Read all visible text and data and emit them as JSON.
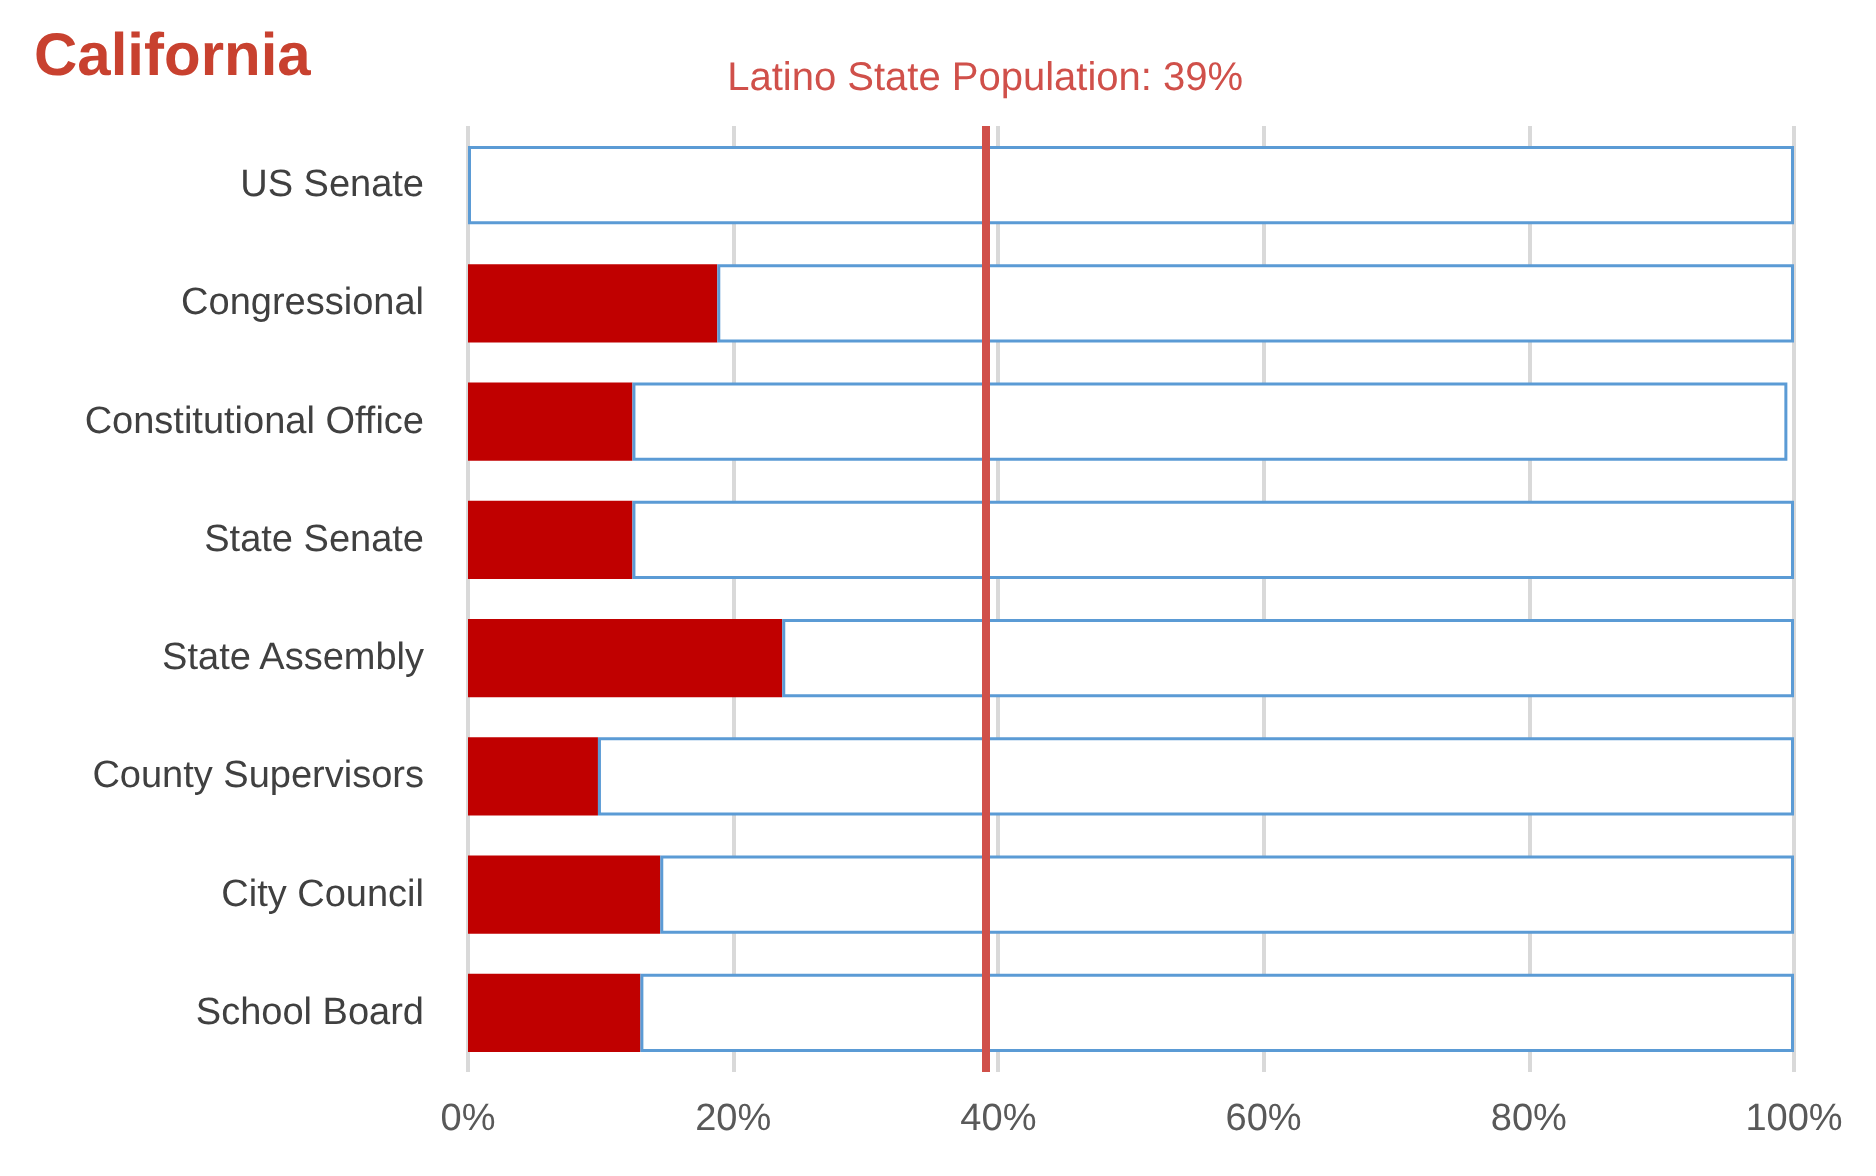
{
  "chart_data": {
    "type": "bar",
    "title": "California",
    "orientation": "horizontal",
    "stacked": true,
    "categories": [
      "US Senate",
      "Congressional",
      "Constitutional Office",
      "State Senate",
      "State Assembly",
      "County Supervisors",
      "City Council",
      "School Board"
    ],
    "series": [
      {
        "color": "#c00000",
        "values": [
          0,
          18.8,
          12.4,
          12.4,
          23.7,
          9.8,
          14.5,
          13.0
        ]
      },
      {
        "color": "#ffffff",
        "values": [
          100,
          81.2,
          87.1,
          87.6,
          76.3,
          90.2,
          85.5,
          87.0
        ]
      }
    ],
    "xlim": [
      0,
      100
    ],
    "xticks": [
      {
        "value": 0,
        "label": "0%"
      },
      {
        "value": 20,
        "label": "20%"
      },
      {
        "value": 40,
        "label": "40%"
      },
      {
        "value": 60,
        "label": "60%"
      },
      {
        "value": 80,
        "label": "80%"
      },
      {
        "value": 100,
        "label": "100%"
      }
    ],
    "grid": "x",
    "ref_lines": [
      {
        "axis": "x",
        "value": 39,
        "label": "Latino State Population: 39%",
        "color": "#d0504a"
      }
    ]
  }
}
